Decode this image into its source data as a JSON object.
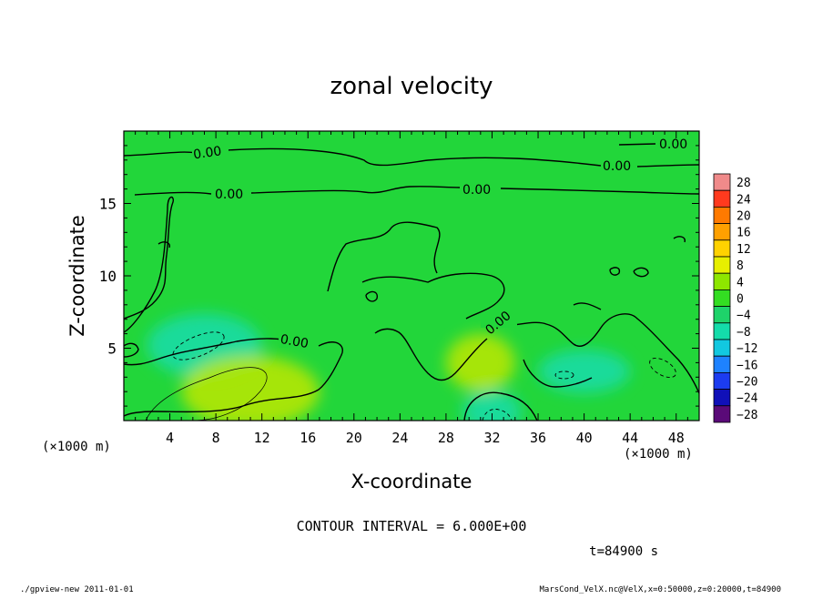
{
  "chart_data": {
    "type": "heatmap",
    "title": "zonal velocity",
    "xlabel": "X-coordinate",
    "ylabel": "Z-coordinate",
    "x_unit": "(×1000 m)",
    "y_unit": "(×1000 m)",
    "xlim": [
      0,
      50
    ],
    "ylim": [
      0,
      20
    ],
    "x_ticks": [
      4,
      8,
      12,
      16,
      20,
      24,
      28,
      32,
      36,
      40,
      44,
      48
    ],
    "y_ticks": [
      5,
      10,
      15
    ],
    "contour_interval_text": "CONTOUR INTERVAL = 6.000E+00",
    "contour_label": "0.00",
    "time_text": "t=84900 s",
    "colorbar": {
      "levels": [
        28,
        24,
        20,
        16,
        12,
        8,
        4,
        0,
        -4,
        -8,
        -12,
        -16,
        -20,
        -24,
        -28
      ],
      "colors": [
        "#f08a8a",
        "#ff3a1e",
        "#ff7a00",
        "#ffa000",
        "#ffd200",
        "#e7ef00",
        "#8ee600",
        "#33dd22",
        "#1ed36a",
        "#14dcaa",
        "#12c8e0",
        "#1e82ff",
        "#1c3cf0",
        "#1010b8",
        "#5a0a78"
      ]
    },
    "field_background": "#22d63a",
    "regions": [
      {
        "label": "-4",
        "cx": 7,
        "cy": 5.2,
        "rx": 5,
        "ry": 2.2
      },
      {
        "label": "-4",
        "cx": 32,
        "cy": 0.6,
        "rx": 2.6,
        "ry": 1.5
      },
      {
        "label": "-4",
        "cx": 40,
        "cy": 3.4,
        "rx": 4,
        "ry": 1.5
      },
      {
        "label": "4",
        "cx": 11,
        "cy": 2.0,
        "rx": 6,
        "ry": 2.5
      },
      {
        "label": "4",
        "cx": 31,
        "cy": 4.0,
        "rx": 3,
        "ry": 2.0
      }
    ]
  },
  "footer": {
    "left": "./gpview-new  2011-01-01",
    "right": "MarsCond_VelX.nc@VelX,x=0:50000,z=0:20000,t=84900"
  }
}
